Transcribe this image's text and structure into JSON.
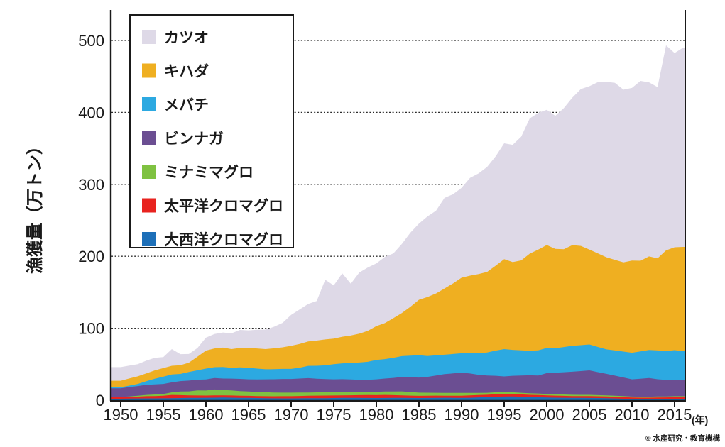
{
  "attribution": "© 水産研究・教育機構",
  "chart_data": {
    "type": "area",
    "stacked": true,
    "title": "",
    "ylabel": "漁獲量（万トン）",
    "x_unit_label": "(年)",
    "grid": "horizontal-dotted",
    "legend_position": "top-left-box",
    "x_start": 1950,
    "x_end": 2016,
    "x_ticks": [
      1950,
      1955,
      1960,
      1965,
      1970,
      1975,
      1980,
      1985,
      1990,
      1995,
      2000,
      2005,
      2010,
      2015
    ],
    "y_ticks": [
      0,
      100,
      200,
      300,
      400,
      500
    ],
    "ylim": [
      0,
      540
    ],
    "stack_note": "series listed top-to-bottom; last item is bottom of stack",
    "series": [
      {
        "id": "katsuo",
        "name": "カツオ",
        "color": "#ded9e7",
        "values": [
          19,
          17.8,
          16.9,
          17.7,
          17.6,
          15.4,
          23.2,
          15.5,
          12,
          12,
          18,
          20,
          21,
          22,
          25,
          24,
          26,
          27,
          30,
          34,
          43,
          48,
          52,
          55,
          83,
          74,
          88,
          72,
          85,
          88,
          87,
          92,
          90,
          96,
          103,
          106,
          112,
          115,
          126,
          124,
          125,
          136,
          140,
          146,
          152,
          161,
          163,
          172,
          188,
          190,
          188,
          185,
          196,
          205,
          218,
          227,
          238,
          244,
          246,
          240,
          240,
          250,
          242,
          238,
          285,
          270,
          277
        ]
      },
      {
        "id": "kihada",
        "name": "キハダ",
        "color": "#efaf21",
        "values": [
          9,
          10,
          10.5,
          11,
          11.5,
          12,
          12,
          12,
          13,
          19,
          25,
          26,
          27,
          26,
          27,
          28,
          28,
          28,
          29,
          30,
          32,
          33,
          34,
          35,
          36,
          35.5,
          37,
          38,
          40,
          43,
          47,
          50,
          55,
          60,
          68,
          77,
          82,
          86,
          92,
          98,
          105,
          108,
          110,
          112,
          118,
          125,
          122,
          125,
          135,
          140,
          143,
          138,
          136,
          140,
          138,
          132,
          130,
          128,
          126,
          124,
          128,
          126,
          130,
          128,
          140,
          143,
          145
        ]
      },
      {
        "id": "mebachi",
        "name": "メバチ",
        "color": "#2ca9e1",
        "values": [
          1.5,
          2,
          3,
          5,
          8,
          10,
          11,
          10,
          12,
          13,
          15,
          15,
          16,
          15,
          16,
          16,
          15,
          14,
          14,
          14,
          14,
          15,
          17,
          18,
          19,
          21,
          22,
          23,
          24,
          25,
          27,
          27,
          28,
          29,
          30,
          31,
          29,
          28,
          27,
          27,
          27,
          28,
          30,
          32,
          35,
          38,
          36,
          35,
          34,
          35,
          35,
          34,
          35,
          36,
          36,
          36,
          35,
          34,
          35,
          36,
          37,
          38,
          39,
          40,
          40,
          41,
          40
        ]
      },
      {
        "id": "binnaga",
        "name": "ビンナガ",
        "color": "#6b4e92",
        "values": [
          12,
          13,
          13.5,
          14,
          14,
          14,
          14,
          14.5,
          15,
          15,
          15.5,
          16,
          16,
          16.5,
          17,
          17,
          17.5,
          18,
          18.5,
          19,
          19,
          19.5,
          20,
          19,
          18.5,
          18,
          18,
          17.5,
          17,
          17,
          17.5,
          18,
          19,
          20,
          20.5,
          21,
          22,
          24,
          26,
          27,
          28,
          27,
          25,
          24,
          23,
          22,
          23,
          24,
          25,
          25,
          29,
          30,
          31,
          32,
          33,
          34,
          32,
          30,
          28,
          26,
          24,
          25,
          26,
          24,
          23,
          23,
          22.5
        ]
      },
      {
        "id": "minami-maguro",
        "name": "ミナミマグロ",
        "color": "#7fc241",
        "values": [
          0.5,
          0.8,
          1.2,
          1.8,
          2.2,
          2.5,
          3.5,
          5,
          5.5,
          7,
          7,
          8.2,
          7.5,
          7,
          6.5,
          6,
          5.8,
          5.5,
          5.2,
          5,
          5,
          4.8,
          4.6,
          4.5,
          4.5,
          4.5,
          4.6,
          4.5,
          4.4,
          4.3,
          4.5,
          4.8,
          5,
          5.5,
          5,
          4.5,
          4.3,
          4,
          4,
          4,
          4,
          3.5,
          3,
          2.8,
          2.6,
          2.5,
          2.4,
          2.3,
          2.2,
          2.1,
          2,
          2,
          1.9,
          1.8,
          1.7,
          1.7,
          1.6,
          1.5,
          1.4,
          1.4,
          1.4,
          1.3,
          1.3,
          1.4,
          1.4,
          1.5,
          1.5
        ]
      },
      {
        "id": "taiheiyo-kuromaguro",
        "name": "太平洋クロマグロ",
        "color": "#e8231f",
        "values": [
          2,
          2.2,
          2.5,
          3,
          3.2,
          3.5,
          4.5,
          4,
          3.5,
          3.2,
          3,
          3.2,
          3,
          3,
          2.8,
          2.8,
          2.6,
          2.7,
          2.8,
          3,
          3,
          3.2,
          3.4,
          3.5,
          3.6,
          3.5,
          3.4,
          3.5,
          3.8,
          4,
          4,
          4.2,
          3.8,
          3.5,
          3.2,
          3,
          3,
          3.1,
          2.8,
          2.9,
          3,
          3.2,
          3.4,
          3.3,
          3.5,
          3.5,
          3.3,
          3.2,
          3,
          3.2,
          3,
          2.8,
          2.6,
          2.4,
          2.5,
          2.6,
          2.4,
          2.3,
          2.3,
          2.2,
          2,
          1.9,
          1.8,
          1.9,
          1.9,
          2,
          2
        ]
      },
      {
        "id": "taiseiyo-kuromaguro",
        "name": "大西洋クロマグロ",
        "color": "#1d6fb8",
        "values": [
          2,
          2.2,
          2.4,
          2.5,
          2.5,
          2.6,
          2.8,
          3,
          3.2,
          3.3,
          3.4,
          3.5,
          3.6,
          3.5,
          3.3,
          3.2,
          3,
          2.8,
          2.6,
          2.5,
          2.5,
          2.6,
          2.7,
          2.8,
          2.8,
          3,
          3.2,
          3.3,
          3.2,
          3.1,
          3,
          3.1,
          3.2,
          3.2,
          3.1,
          3,
          3.1,
          3.2,
          3.4,
          3.3,
          3.2,
          3.4,
          3.8,
          4.2,
          4.8,
          5,
          5.2,
          4.8,
          4.4,
          4,
          3.6,
          3.5,
          3.4,
          3.3,
          3.2,
          3.1,
          3,
          2.8,
          2.4,
          2,
          1.6,
          1.6,
          1.7,
          1.8,
          1.9,
          2,
          2
        ]
      }
    ]
  }
}
